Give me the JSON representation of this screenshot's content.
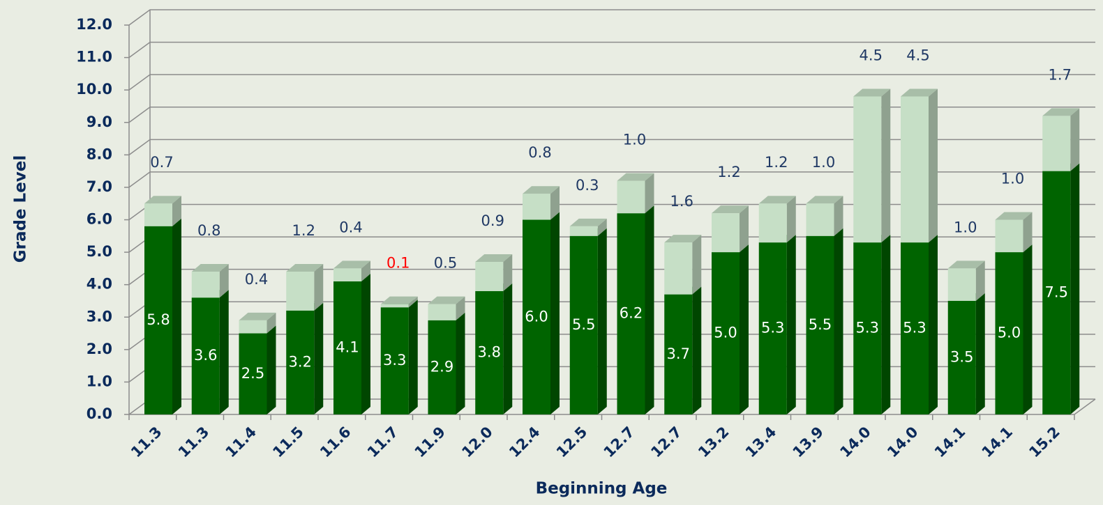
{
  "chart_data": {
    "type": "stacked_bar_3d",
    "y_label": "Grade Level",
    "x_label": "Beginning Age",
    "categories": [
      "11.3",
      "11.3",
      "11.4",
      "11.5",
      "11.6",
      "11.7",
      "11.9",
      "12.0",
      "12.4",
      "12.5",
      "12.7",
      "12.7",
      "13.2",
      "13.4",
      "13.9",
      "14.0",
      "14.0",
      "14.1",
      "14.1",
      "15.2"
    ],
    "series": [
      {
        "color": "#006400",
        "label_color": "#ffffff",
        "values": [
          5.8,
          3.6,
          2.5,
          3.2,
          4.1,
          3.3,
          2.9,
          3.8,
          6.0,
          5.5,
          6.2,
          3.7,
          5.0,
          5.3,
          5.5,
          5.3,
          5.3,
          3.5,
          5.0,
          7.5
        ],
        "value_labels": [
          "5.8",
          "3.6",
          "2.5",
          "3.2",
          "4.1",
          "3.3",
          "2.9",
          "3.8",
          "6.0",
          "5.5",
          "6.2",
          "3.7",
          "5.0",
          "5.3",
          "5.5",
          "5.3",
          "5.3",
          "3.5",
          "5.0",
          "7.5"
        ]
      },
      {
        "color": "#c6dfc6",
        "values": [
          0.7,
          0.8,
          0.4,
          1.2,
          0.4,
          0.1,
          0.5,
          0.9,
          0.8,
          0.3,
          1.0,
          1.6,
          1.2,
          1.2,
          1.0,
          4.5,
          4.5,
          1.0,
          1.0,
          1.7
        ],
        "value_labels": [
          "0.7",
          "0.8",
          "0.4",
          "1.2",
          "0.4",
          "0.1",
          "0.5",
          "0.9",
          "0.8",
          "0.3",
          "1.0",
          "1.6",
          "1.2",
          "1.2",
          "1.0",
          "4.5",
          "4.5",
          "1.0",
          "1.0",
          "1.7"
        ],
        "label_colors": [
          "#1f3864",
          "#1f3864",
          "#1f3864",
          "#1f3864",
          "#1f3864",
          "#ff0000",
          "#1f3864",
          "#1f3864",
          "#1f3864",
          "#1f3864",
          "#1f3864",
          "#1f3864",
          "#1f3864",
          "#1f3864",
          "#1f3864",
          "#1f3864",
          "#1f3864",
          "#1f3864",
          "#1f3864",
          "#1f3864"
        ]
      }
    ],
    "ylim": [
      0,
      12
    ],
    "yticks": [
      {
        "value": 0,
        "label": "0.0"
      },
      {
        "value": 1,
        "label": "1.0"
      },
      {
        "value": 2,
        "label": "2.0"
      },
      {
        "value": 3,
        "label": "3.0"
      },
      {
        "value": 4,
        "label": "4.0"
      },
      {
        "value": 5,
        "label": "5.0"
      },
      {
        "value": 6,
        "label": "6.0"
      },
      {
        "value": 7,
        "label": "7.0"
      },
      {
        "value": 8,
        "label": "8.0"
      },
      {
        "value": 9,
        "label": "9.0"
      },
      {
        "value": 10,
        "label": "10.0"
      },
      {
        "value": 11,
        "label": "11.0"
      },
      {
        "value": 12,
        "label": "12.0"
      }
    ],
    "grid": true
  }
}
